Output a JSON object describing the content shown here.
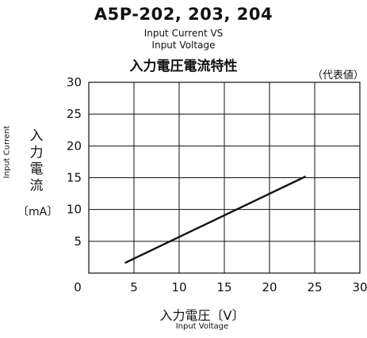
{
  "chart_data": {
    "type": "line",
    "title": "A5P-202, 203, 204",
    "subtitle_lines": [
      "Input Current VS",
      "Input Voltage",
      "入力電圧電流特性"
    ],
    "note": "（代表値）",
    "xlabel": "入力電圧〔V〕",
    "xlabel_en": "Input Voltage",
    "ylabel": "入力電流",
    "ylabel_en": "Input Current",
    "yunit": "〔mA〕",
    "xlim": [
      0,
      30
    ],
    "ylim": [
      0,
      30
    ],
    "xticks": [
      0,
      5,
      10,
      15,
      20,
      25,
      30
    ],
    "yticks": [
      5,
      10,
      15,
      20,
      25,
      30
    ],
    "grid": true,
    "series": [
      {
        "x": [
          4,
          24
        ],
        "y": [
          1.6,
          15.2
        ]
      }
    ]
  }
}
